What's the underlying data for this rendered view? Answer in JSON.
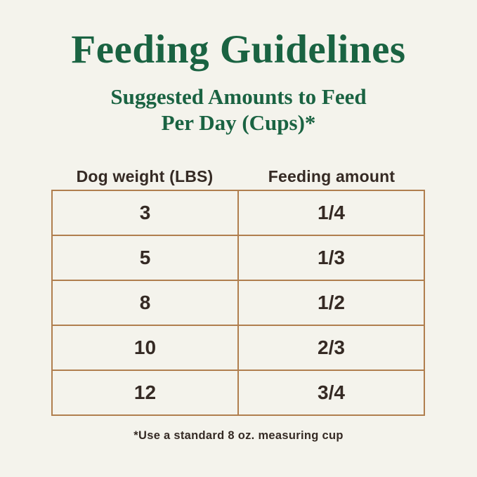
{
  "page": {
    "title": "Feeding Guidelines",
    "subtitle_line1": "Suggested Amounts to Feed",
    "subtitle_line2": "Per Day (Cups)*",
    "footnote": "*Use a standard 8 oz. measuring cup"
  },
  "table": {
    "headers": [
      {
        "label": "Dog weight (LBS)"
      },
      {
        "label": "Feeding amount"
      }
    ],
    "rows": [
      {
        "weight": "3",
        "amount": "1/4"
      },
      {
        "weight": "5",
        "amount": "1/3"
      },
      {
        "weight": "8",
        "amount": "1/2"
      },
      {
        "weight": "10",
        "amount": "2/3"
      },
      {
        "weight": "12",
        "amount": "3/4"
      }
    ]
  },
  "colors": {
    "background": "#f4f3ec",
    "green": "#1a6342",
    "border_tan": "#b07e4e",
    "text_dark": "#352a24"
  },
  "chart_data": {
    "type": "table",
    "title": "Feeding Guidelines",
    "subtitle": "Suggested Amounts to Feed Per Day (Cups)*",
    "columns": [
      "Dog weight (LBS)",
      "Feeding amount"
    ],
    "rows": [
      [
        "3",
        "1/4"
      ],
      [
        "5",
        "1/3"
      ],
      [
        "8",
        "1/2"
      ],
      [
        "10",
        "2/3"
      ],
      [
        "12",
        "3/4"
      ]
    ],
    "footnote": "*Use a standard 8 oz. measuring cup"
  }
}
